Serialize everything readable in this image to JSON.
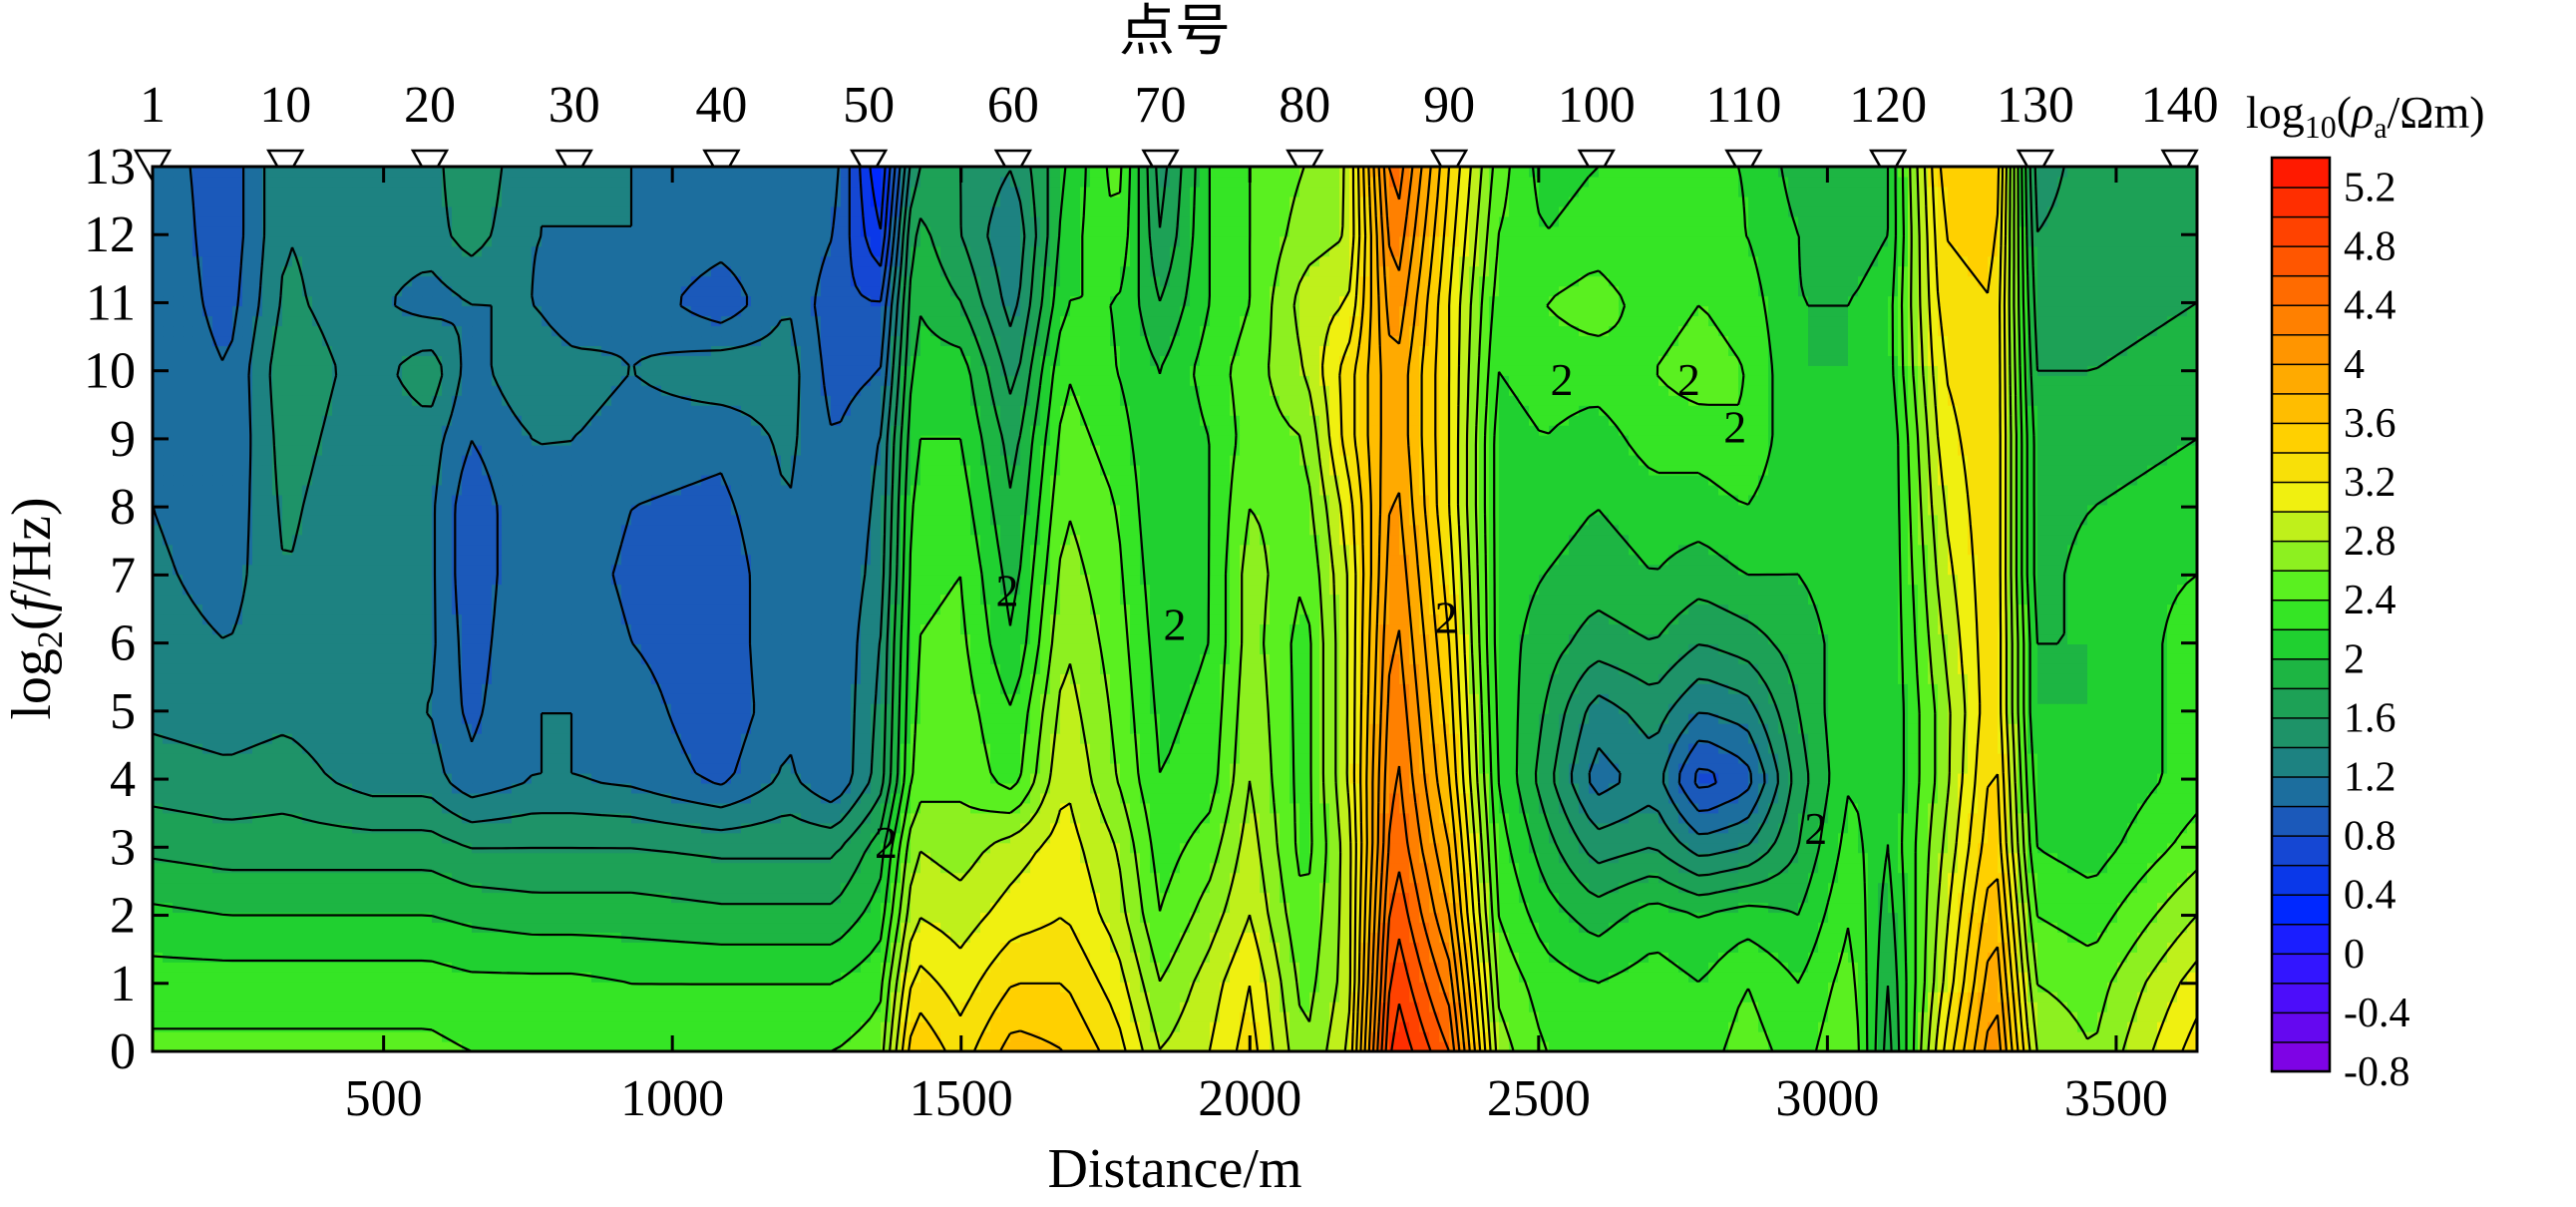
{
  "chart_data": {
    "type": "heatmap",
    "title": "点号",
    "xlabel": "Distance/m",
    "ylabel_parts": [
      "log",
      "2",
      "(",
      "f",
      "/Hz)"
    ],
    "colorbar_label_parts": [
      "log",
      "10",
      "(",
      "ρ",
      "a",
      "/Ωm)"
    ],
    "xlim": [
      100,
      3640
    ],
    "ylim": [
      0,
      13
    ],
    "x_ticks": [
      500,
      1000,
      1500,
      2000,
      2500,
      3000,
      3500
    ],
    "x_tick_labels": [
      "500",
      "1000",
      "1500",
      "2000",
      "2500",
      "3000",
      "3500"
    ],
    "y_ticks": [
      0,
      1,
      2,
      3,
      4,
      5,
      6,
      7,
      8,
      9,
      10,
      11,
      12,
      13
    ],
    "y_tick_labels": [
      "0",
      "1",
      "2",
      "3",
      "4",
      "5",
      "6",
      "7",
      "8",
      "9",
      "10",
      "11",
      "12",
      "13"
    ],
    "stations": [
      {
        "label": "1",
        "distance": 100
      },
      {
        "label": "10",
        "distance": 330
      },
      {
        "label": "20",
        "distance": 580
      },
      {
        "label": "30",
        "distance": 830
      },
      {
        "label": "40",
        "distance": 1085
      },
      {
        "label": "50",
        "distance": 1340
      },
      {
        "label": "60",
        "distance": 1590
      },
      {
        "label": "70",
        "distance": 1845
      },
      {
        "label": "80",
        "distance": 2095
      },
      {
        "label": "90",
        "distance": 2345
      },
      {
        "label": "100",
        "distance": 2600
      },
      {
        "label": "110",
        "distance": 2855
      },
      {
        "label": "120",
        "distance": 3105
      },
      {
        "label": "130",
        "distance": 3360
      },
      {
        "label": "140",
        "distance": 3610
      }
    ],
    "colorbar": {
      "min": -0.8,
      "max": 5.4,
      "step": 0.2,
      "tick_labels": [
        "5.2",
        "4.8",
        "4.4",
        "4",
        "3.6",
        "3.2",
        "2.8",
        "2.4",
        "2",
        "1.6",
        "1.2",
        "0.8",
        "0.4",
        "0",
        "-0.4",
        "-0.8"
      ],
      "tick_values": [
        5.2,
        4.8,
        4.4,
        4,
        3.6,
        3.2,
        2.8,
        2.4,
        2,
        1.6,
        1.2,
        0.8,
        0.4,
        0,
        -0.4,
        -0.8
      ],
      "stops": [
        {
          "v": -0.8,
          "color": "#8a00e0"
        },
        {
          "v": -0.2,
          "color": "#4010ff"
        },
        {
          "v": 0.3,
          "color": "#0028ff"
        },
        {
          "v": 0.8,
          "color": "#1a4fc8"
        },
        {
          "v": 1.1,
          "color": "#1c6e9e"
        },
        {
          "v": 1.4,
          "color": "#1e8c72"
        },
        {
          "v": 1.8,
          "color": "#1ca84c"
        },
        {
          "v": 2.1,
          "color": "#20d030"
        },
        {
          "v": 2.4,
          "color": "#40f020"
        },
        {
          "v": 2.8,
          "color": "#a6f020"
        },
        {
          "v": 3.1,
          "color": "#f0f010"
        },
        {
          "v": 3.5,
          "color": "#ffd000"
        },
        {
          "v": 4.0,
          "color": "#ffa000"
        },
        {
          "v": 4.6,
          "color": "#ff6000"
        },
        {
          "v": 5.4,
          "color": "#ff1000"
        }
      ]
    },
    "field_columns": [
      {
        "x": 100,
        "values": [
          2.45,
          2.3,
          2.05,
          1.75,
          1.5,
          1.35,
          1.3,
          1.25,
          1.2,
          1.2,
          1.2,
          1.2,
          1.2,
          1.15
        ]
      },
      {
        "x": 230,
        "values": [
          2.45,
          2.3,
          2.0,
          1.7,
          1.45,
          1.3,
          1.2,
          1.1,
          1.05,
          1.0,
          1.0,
          0.9,
          0.85,
          0.85
        ]
      },
      {
        "x": 330,
        "values": [
          2.45,
          2.3,
          2.0,
          1.7,
          1.5,
          1.35,
          1.35,
          1.4,
          1.45,
          1.5,
          1.55,
          1.45,
          1.4,
          1.4
        ]
      },
      {
        "x": 480,
        "values": [
          2.45,
          2.3,
          2.0,
          1.7,
          1.3,
          1.25,
          1.2,
          1.2,
          1.2,
          1.25,
          1.3,
          1.25,
          1.3,
          1.3
        ]
      },
      {
        "x": 580,
        "values": [
          2.45,
          2.3,
          2.0,
          1.7,
          1.3,
          1.2,
          1.25,
          1.25,
          1.25,
          1.3,
          1.55,
          1.1,
          1.3,
          1.3
        ]
      },
      {
        "x": 650,
        "values": [
          2.4,
          2.25,
          1.95,
          1.6,
          1.05,
          0.95,
          0.9,
          0.85,
          0.85,
          1.0,
          1.1,
          1.2,
          1.5,
          1.6
        ]
      },
      {
        "x": 760,
        "values": [
          2.4,
          2.25,
          1.9,
          1.6,
          1.2,
          1.2,
          1.2,
          1.2,
          1.2,
          1.2,
          1.4,
          1.2,
          1.2,
          1.2
        ]
      },
      {
        "x": 830,
        "values": [
          2.4,
          2.25,
          1.9,
          1.6,
          1.2,
          1.2,
          1.15,
          1.1,
          1.15,
          1.2,
          1.3,
          1.0,
          1.2,
          1.2
        ]
      },
      {
        "x": 930,
        "values": [
          2.4,
          2.2,
          1.9,
          1.6,
          1.15,
          1.1,
          1.0,
          0.95,
          1.0,
          1.1,
          1.2,
          1.15,
          1.2,
          1.2
        ]
      },
      {
        "x": 1085,
        "values": [
          2.4,
          2.2,
          1.85,
          1.55,
          0.95,
          0.85,
          0.85,
          0.85,
          0.95,
          1.05,
          1.35,
          0.85,
          1.1,
          1.2
        ]
      },
      {
        "x": 1200,
        "values": [
          2.4,
          2.2,
          1.85,
          1.55,
          1.25,
          1.15,
          1.2,
          1.2,
          1.2,
          1.25,
          1.3,
          1.2,
          1.2,
          1.2
        ]
      },
      {
        "x": 1280,
        "values": [
          2.4,
          2.2,
          1.85,
          1.55,
          1.0,
          1.0,
          1.0,
          1.0,
          1.0,
          1.0,
          0.9,
          0.85,
          1.0,
          1.1
        ]
      },
      {
        "x": 1360,
        "values": [
          2.5,
          2.35,
          2.1,
          1.9,
          1.5,
          1.45,
          1.4,
          1.3,
          1.25,
          1.2,
          1.0,
          0.8,
          0.4,
          0.2
        ]
      },
      {
        "x": 1420,
        "values": [
          3.6,
          3.3,
          3.0,
          2.8,
          2.5,
          2.45,
          2.4,
          2.35,
          2.3,
          2.2,
          2.1,
          2.0,
          1.9,
          1.6
        ]
      },
      {
        "x": 1500,
        "values": [
          3.3,
          3.1,
          2.9,
          2.7,
          2.55,
          2.5,
          2.45,
          2.4,
          2.3,
          2.2,
          2.1,
          1.8,
          1.6,
          1.6
        ]
      },
      {
        "x": 1590,
        "values": [
          3.7,
          3.4,
          3.1,
          2.9,
          2.3,
          2.2,
          2.0,
          1.9,
          1.8,
          1.7,
          1.5,
          1.3,
          1.2,
          1.4
        ]
      },
      {
        "x": 1680,
        "values": [
          3.6,
          3.4,
          3.2,
          3.1,
          3.0,
          2.9,
          2.8,
          2.7,
          2.6,
          2.5,
          2.4,
          2.2,
          2.1,
          2.0
        ]
      },
      {
        "x": 1770,
        "values": [
          3.3,
          3.1,
          2.9,
          2.8,
          2.6,
          2.55,
          2.5,
          2.45,
          2.4,
          2.3,
          2.2,
          2.2,
          2.4,
          2.5
        ]
      },
      {
        "x": 1845,
        "values": [
          2.8,
          2.6,
          2.4,
          2.3,
          2.2,
          2.15,
          2.1,
          2.05,
          2.0,
          2.0,
          2.0,
          1.8,
          1.6,
          1.5
        ]
      },
      {
        "x": 1930,
        "values": [
          3.0,
          2.9,
          2.7,
          2.5,
          2.3,
          2.25,
          2.2,
          2.2,
          2.2,
          2.2,
          2.3,
          2.2,
          2.2,
          2.2
        ]
      },
      {
        "x": 2000,
        "values": [
          3.3,
          3.2,
          3.0,
          2.9,
          2.8,
          2.75,
          2.7,
          2.7,
          2.6,
          2.5,
          2.5,
          2.4,
          2.4,
          2.4
        ]
      },
      {
        "x": 2095,
        "values": [
          2.6,
          2.5,
          2.4,
          2.3,
          2.3,
          2.3,
          2.3,
          2.4,
          2.5,
          2.6,
          2.8,
          2.9,
          2.7,
          2.6
        ]
      },
      {
        "x": 2170,
        "values": [
          3.0,
          2.9,
          2.9,
          2.9,
          3.0,
          3.0,
          3.0,
          3.0,
          3.1,
          3.3,
          3.3,
          3.0,
          2.8,
          2.8
        ]
      },
      {
        "x": 2250,
        "values": [
          5.2,
          5.0,
          4.8,
          4.6,
          4.5,
          4.4,
          4.3,
          4.2,
          4.1,
          4.0,
          4.0,
          4.2,
          4.4,
          4.6
        ]
      },
      {
        "x": 2345,
        "values": [
          4.6,
          4.3,
          4.0,
          3.8,
          3.6,
          3.5,
          3.4,
          3.3,
          3.2,
          3.2,
          3.2,
          3.2,
          3.3,
          3.4
        ]
      },
      {
        "x": 2430,
        "values": [
          2.7,
          2.55,
          2.4,
          2.3,
          2.2,
          2.15,
          2.1,
          2.1,
          2.1,
          2.1,
          2.2,
          2.3,
          2.4,
          2.5
        ]
      },
      {
        "x": 2510,
        "values": [
          2.4,
          2.3,
          2.1,
          1.9,
          1.7,
          1.8,
          1.9,
          2.0,
          2.1,
          2.2,
          2.3,
          2.4,
          2.2,
          2.1
        ]
      },
      {
        "x": 2600,
        "values": [
          2.3,
          2.2,
          1.9,
          1.5,
          1.1,
          1.3,
          1.7,
          1.9,
          2.0,
          2.1,
          2.3,
          2.5,
          2.3,
          2.2
        ]
      },
      {
        "x": 2700,
        "values": [
          2.4,
          2.3,
          2.1,
          1.6,
          1.3,
          1.5,
          1.8,
          2.0,
          2.1,
          2.3,
          2.4,
          2.3,
          2.2,
          2.2
        ]
      },
      {
        "x": 2780,
        "values": [
          2.3,
          2.2,
          2.0,
          1.3,
          0.7,
          1.2,
          1.6,
          1.9,
          2.1,
          2.3,
          2.5,
          2.4,
          2.3,
          2.2
        ]
      },
      {
        "x": 2860,
        "values": [
          2.5,
          2.4,
          2.1,
          1.4,
          0.9,
          1.3,
          1.7,
          2.0,
          2.2,
          2.4,
          2.4,
          2.3,
          2.2,
          2.2
        ]
      },
      {
        "x": 2950,
        "values": [
          2.3,
          2.2,
          2.0,
          1.8,
          1.7,
          1.8,
          1.9,
          2.0,
          2.0,
          2.0,
          2.0,
          2.0,
          2.0,
          1.9
        ]
      },
      {
        "x": 3040,
        "values": [
          2.6,
          2.5,
          2.4,
          2.3,
          2.2,
          2.2,
          2.1,
          2.1,
          2.1,
          2.1,
          2.0,
          2.0,
          1.9,
          1.9
        ]
      },
      {
        "x": 3105,
        "values": [
          1.7,
          1.8,
          1.9,
          2.0,
          2.0,
          2.0,
          2.0,
          2.0,
          2.0,
          2.0,
          2.1,
          2.1,
          2.0,
          2.0
        ]
      },
      {
        "x": 3200,
        "values": [
          3.2,
          3.0,
          2.9,
          2.8,
          2.7,
          2.7,
          2.8,
          2.9,
          3.0,
          3.1,
          3.2,
          3.3,
          3.4,
          3.5
        ]
      },
      {
        "x": 3290,
        "values": [
          4.2,
          4.0,
          3.8,
          3.6,
          3.5,
          3.4,
          3.4,
          3.4,
          3.4,
          3.4,
          3.4,
          3.4,
          3.5,
          3.6
        ]
      },
      {
        "x": 3360,
        "values": [
          2.8,
          2.6,
          2.4,
          2.2,
          2.1,
          2.0,
          2.0,
          1.9,
          1.9,
          1.9,
          1.8,
          1.7,
          1.6,
          1.5
        ]
      },
      {
        "x": 3460,
        "values": [
          2.6,
          2.5,
          2.3,
          2.1,
          2.0,
          2.0,
          2.0,
          2.1,
          2.0,
          1.9,
          1.8,
          1.7,
          1.7,
          1.7
        ]
      },
      {
        "x": 3640,
        "values": [
          3.3,
          3.1,
          2.8,
          2.5,
          2.3,
          2.3,
          2.3,
          2.2,
          2.1,
          2.0,
          1.9,
          1.8,
          1.7,
          1.6
        ]
      }
    ],
    "contour_labels": [
      {
        "text": "2",
        "x": 1580,
        "y": 6.7
      },
      {
        "text": "2",
        "x": 1870,
        "y": 6.2
      },
      {
        "text": "2",
        "x": 2340,
        "y": 6.3
      },
      {
        "text": "2",
        "x": 2540,
        "y": 9.8
      },
      {
        "text": "2",
        "x": 2760,
        "y": 9.8
      },
      {
        "text": "2",
        "x": 2840,
        "y": 9.1
      },
      {
        "text": "2",
        "x": 1370,
        "y": 3.0
      },
      {
        "text": "2",
        "x": 2980,
        "y": 3.2
      }
    ]
  }
}
